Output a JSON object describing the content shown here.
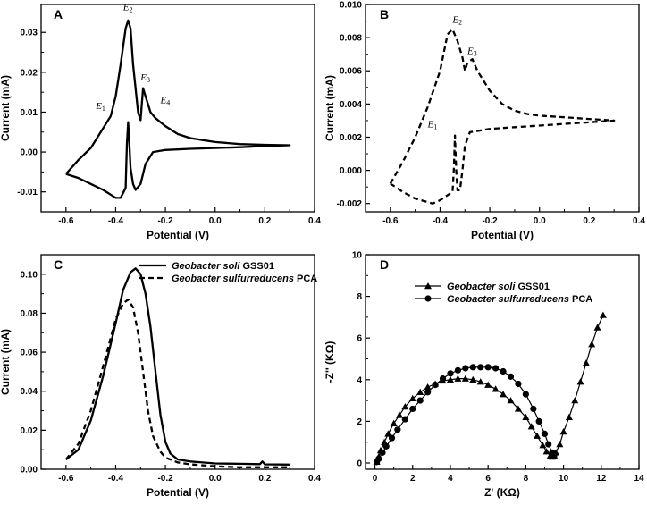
{
  "chart_data": [
    {
      "id": "A",
      "type": "line",
      "panel_label": "A",
      "xlabel": "Potential (V)",
      "ylabel": "Current (mA)",
      "xlim": [
        -0.7,
        0.4
      ],
      "ylim": [
        -0.015,
        0.037
      ],
      "xticks": [
        -0.6,
        -0.4,
        -0.2,
        0.0,
        0.2,
        0.4
      ],
      "xtick_labels": [
        "-0.6",
        "-0.4",
        "-0.2",
        "0.0",
        "0.2",
        "0.4"
      ],
      "yticks": [
        -0.01,
        0.0,
        0.01,
        0.02,
        0.03
      ],
      "ytick_labels": [
        "-0.01",
        "0.00",
        "0.01",
        "0.02",
        "0.03"
      ],
      "series": [
        {
          "style": "solid",
          "x": [
            -0.6,
            -0.55,
            -0.5,
            -0.45,
            -0.42,
            -0.4,
            -0.38,
            -0.36,
            -0.35,
            -0.34,
            -0.33,
            -0.31,
            -0.3,
            -0.29,
            -0.28,
            -0.26,
            -0.24,
            -0.2,
            -0.15,
            -0.1,
            -0.05,
            0.0,
            0.1,
            0.2,
            0.3,
            0.2,
            0.1,
            0.0,
            -0.1,
            -0.2,
            -0.25,
            -0.28,
            -0.3,
            -0.32,
            -0.33,
            -0.34,
            -0.345,
            -0.35,
            -0.355,
            -0.36,
            -0.38,
            -0.4,
            -0.45,
            -0.5,
            -0.55,
            -0.6
          ],
          "y": [
            -0.0055,
            -0.002,
            0.001,
            0.006,
            0.009,
            0.014,
            0.022,
            0.031,
            0.033,
            0.031,
            0.022,
            0.01,
            0.008,
            0.016,
            0.014,
            0.01,
            0.0085,
            0.0065,
            0.0045,
            0.0035,
            0.003,
            0.0025,
            0.002,
            0.0018,
            0.0017,
            0.0015,
            0.0012,
            0.001,
            0.0008,
            0.0005,
            0.0,
            -0.003,
            -0.008,
            -0.0095,
            -0.008,
            -0.004,
            0.002,
            0.0075,
            0.002,
            -0.009,
            -0.0115,
            -0.0115,
            -0.0095,
            -0.008,
            -0.0065,
            -0.0055
          ]
        }
      ],
      "annotations": [
        {
          "label": "E",
          "sub": "1",
          "x": -0.48,
          "y": 0.0108
        },
        {
          "label": "E",
          "sub": "2",
          "x": -0.37,
          "y": 0.0355
        },
        {
          "label": "E",
          "sub": "3",
          "x": -0.3,
          "y": 0.018
        },
        {
          "label": "E",
          "sub": "4",
          "x": -0.22,
          "y": 0.0122
        }
      ]
    },
    {
      "id": "B",
      "type": "line",
      "panel_label": "B",
      "xlabel": "Potential (V)",
      "ylabel": "Current (mA)",
      "xlim": [
        -0.7,
        0.4
      ],
      "ylim": [
        -0.0025,
        0.01
      ],
      "xticks": [
        -0.6,
        -0.4,
        -0.2,
        0.0,
        0.2,
        0.4
      ],
      "xtick_labels": [
        "-0.6",
        "-0.4",
        "-0.2",
        "0.0",
        "0.2",
        "0.4"
      ],
      "yticks": [
        -0.002,
        0.0,
        0.002,
        0.004,
        0.006,
        0.008,
        0.01
      ],
      "ytick_labels": [
        "-0.002",
        "0.000",
        "0.002",
        "0.004",
        "0.006",
        "0.008",
        "0.010"
      ],
      "series": [
        {
          "style": "dashed",
          "x": [
            -0.6,
            -0.55,
            -0.5,
            -0.45,
            -0.4,
            -0.37,
            -0.35,
            -0.33,
            -0.31,
            -0.3,
            -0.29,
            -0.27,
            -0.25,
            -0.2,
            -0.15,
            -0.1,
            -0.05,
            0.0,
            0.1,
            0.2,
            0.3,
            0.2,
            0.1,
            0.0,
            -0.1,
            -0.2,
            -0.28,
            -0.3,
            -0.31,
            -0.32,
            -0.33,
            -0.335,
            -0.34,
            -0.345,
            -0.35,
            -0.37,
            -0.4,
            -0.43,
            -0.5,
            -0.55,
            -0.6
          ],
          "y": [
            -0.0008,
            0.0005,
            0.002,
            0.0038,
            0.006,
            0.0082,
            0.0085,
            0.0078,
            0.0068,
            0.006,
            0.0065,
            0.0067,
            0.006,
            0.0048,
            0.004,
            0.0036,
            0.0034,
            0.0033,
            0.0032,
            0.0031,
            0.003,
            0.0029,
            0.0028,
            0.0027,
            0.0026,
            0.0025,
            0.0023,
            0.0015,
            0.0,
            -0.0012,
            -0.0012,
            0.0,
            0.0021,
            0.0,
            -0.0013,
            -0.0015,
            -0.0018,
            -0.002,
            -0.0017,
            -0.0013,
            -0.0008
          ]
        }
      ],
      "annotations": [
        {
          "label": "E",
          "sub": "1",
          "x": -0.45,
          "y": 0.0026
        },
        {
          "label": "E",
          "sub": "2",
          "x": -0.35,
          "y": 0.0089
        },
        {
          "label": "E",
          "sub": "3",
          "x": -0.29,
          "y": 0.007
        }
      ]
    },
    {
      "id": "C",
      "type": "line",
      "panel_label": "C",
      "xlabel": "Potential (V)",
      "ylabel": "Current (mA)",
      "xlim": [
        -0.7,
        0.4
      ],
      "ylim": [
        0.0,
        0.11
      ],
      "xticks": [
        -0.6,
        -0.4,
        -0.2,
        0.0,
        0.2,
        0.4
      ],
      "xtick_labels": [
        "-0.6",
        "-0.4",
        "-0.2",
        "0.0",
        "0.2",
        "0.4"
      ],
      "yticks": [
        0.0,
        0.02,
        0.04,
        0.06,
        0.08,
        0.1
      ],
      "ytick_labels": [
        "0.00",
        "0.02",
        "0.04",
        "0.06",
        "0.08",
        "0.10"
      ],
      "legend_position": "top-right",
      "series": [
        {
          "name_italic": "Geobacter soli",
          "name_rest": " GSS01",
          "style": "solid",
          "x": [
            -0.6,
            -0.55,
            -0.5,
            -0.45,
            -0.4,
            -0.37,
            -0.34,
            -0.32,
            -0.3,
            -0.28,
            -0.26,
            -0.24,
            -0.22,
            -0.2,
            -0.18,
            -0.15,
            -0.1,
            -0.05,
            0.0,
            0.1,
            0.18,
            0.19,
            0.2,
            0.3
          ],
          "y": [
            0.005,
            0.01,
            0.025,
            0.048,
            0.075,
            0.092,
            0.101,
            0.103,
            0.1,
            0.09,
            0.073,
            0.05,
            0.028,
            0.014,
            0.008,
            0.005,
            0.004,
            0.0035,
            0.003,
            0.0028,
            0.0026,
            0.004,
            0.0025,
            0.0024
          ]
        },
        {
          "name_italic": "Geobacter sulfurreducens",
          "name_rest": " PCA",
          "style": "dashed",
          "x": [
            -0.6,
            -0.55,
            -0.5,
            -0.45,
            -0.4,
            -0.37,
            -0.35,
            -0.33,
            -0.31,
            -0.29,
            -0.27,
            -0.25,
            -0.22,
            -0.2,
            -0.15,
            -0.1,
            -0.05,
            0.0,
            0.1,
            0.2,
            0.3
          ],
          "y": [
            0.005,
            0.013,
            0.03,
            0.053,
            0.077,
            0.085,
            0.087,
            0.083,
            0.07,
            0.05,
            0.03,
            0.017,
            0.009,
            0.006,
            0.0035,
            0.0025,
            0.002,
            0.0015,
            0.001,
            0.001,
            0.001
          ]
        }
      ]
    },
    {
      "id": "D",
      "type": "scatter",
      "panel_label": "D",
      "xlabel": "Z' (KΩ)",
      "ylabel": "-Z'' (KΩ)",
      "xlim": [
        -0.5,
        14
      ],
      "ylim": [
        -0.3,
        10
      ],
      "xticks": [
        0,
        2,
        4,
        6,
        8,
        10,
        12,
        14
      ],
      "xtick_labels": [
        "0",
        "2",
        "4",
        "6",
        "8",
        "10",
        "12",
        "14"
      ],
      "yticks": [
        0,
        2,
        4,
        6,
        8,
        10
      ],
      "ytick_labels": [
        "0",
        "2",
        "4",
        "6",
        "8",
        "10"
      ],
      "legend_position": "top-left",
      "series": [
        {
          "name_italic": "Geobacter soli",
          "name_rest": " GSS01",
          "marker": "triangle",
          "x": [
            0.1,
            0.2,
            0.3,
            0.5,
            0.7,
            1.0,
            1.3,
            1.6,
            2.0,
            2.4,
            2.8,
            3.2,
            3.6,
            4.0,
            4.4,
            4.8,
            5.2,
            5.6,
            6.0,
            6.4,
            6.8,
            7.2,
            7.6,
            8.0,
            8.3,
            8.6,
            8.9,
            9.1,
            9.3,
            9.4,
            9.5,
            9.6,
            9.8,
            10.0,
            10.3,
            10.6,
            10.9,
            11.2,
            11.5,
            11.8,
            12.1
          ],
          "y": [
            0.05,
            0.3,
            0.6,
            1.0,
            1.4,
            1.9,
            2.3,
            2.7,
            3.1,
            3.4,
            3.65,
            3.8,
            3.95,
            4.0,
            4.05,
            4.05,
            4.0,
            3.9,
            3.75,
            3.55,
            3.3,
            3.0,
            2.6,
            2.2,
            1.75,
            1.3,
            0.85,
            0.55,
            0.35,
            0.3,
            0.35,
            0.5,
            0.9,
            1.5,
            2.2,
            3.0,
            3.9,
            4.8,
            5.7,
            6.5,
            7.1
          ]
        },
        {
          "name_italic": "Geobacter sulfurreducens",
          "name_rest": " PCA",
          "marker": "circle",
          "x": [
            0.1,
            0.2,
            0.4,
            0.6,
            0.9,
            1.2,
            1.6,
            2.0,
            2.4,
            2.8,
            3.2,
            3.6,
            4.0,
            4.4,
            4.8,
            5.2,
            5.6,
            6.0,
            6.4,
            6.8,
            7.2,
            7.6,
            8.0,
            8.4,
            8.7,
            9.0,
            9.2,
            9.4,
            9.5
          ],
          "y": [
            0.05,
            0.2,
            0.5,
            0.8,
            1.2,
            1.6,
            2.1,
            2.6,
            3.0,
            3.4,
            3.75,
            4.05,
            4.3,
            4.45,
            4.55,
            4.6,
            4.6,
            4.6,
            4.55,
            4.4,
            4.15,
            3.8,
            3.3,
            2.6,
            2.0,
            1.4,
            0.9,
            0.5,
            0.35
          ]
        }
      ]
    }
  ]
}
